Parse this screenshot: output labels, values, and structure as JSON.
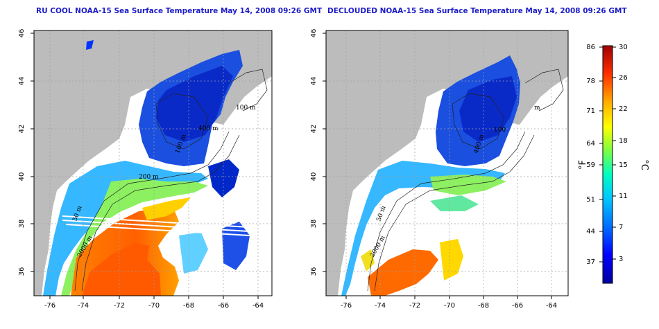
{
  "left_map": {
    "title": "RU COOL NOAA-15 Sea Surface Temperature May 14, 2008 09:26 GMT",
    "x_ticks": [
      "-76",
      "-74",
      "-72",
      "-70",
      "-68",
      "-66",
      "-64"
    ],
    "y_ticks": [
      "46",
      "44",
      "42",
      "40",
      "38",
      "36"
    ],
    "contour_labels": [
      "200 m",
      "2000 m",
      "400 m",
      "100 m",
      "100 m",
      "50 m"
    ]
  },
  "right_map": {
    "title": "DECLOUDED NOAA-15 Sea Surface Temperature May 14, 2008 09:26 GMT",
    "x_ticks": [
      "-76",
      "-74",
      "-72",
      "-70",
      "-68",
      "-66",
      "-64"
    ],
    "y_ticks": [
      "46",
      "44",
      "42",
      "40",
      "38",
      "36"
    ],
    "contour_labels": [
      "2000 m",
      "50 m",
      "400 m",
      "m",
      "100"
    ]
  },
  "colorbar": {
    "fahrenheit_label": "°F",
    "celsius_label": "°C",
    "fahrenheit_ticks": [
      "86",
      "78",
      "71",
      "64",
      "59",
      "51",
      "44",
      "37"
    ],
    "celsius_ticks": [
      "30",
      "26",
      "22",
      "18",
      "15",
      "11",
      "7",
      "3"
    ],
    "colors": [
      "#0000a0",
      "#0000ff",
      "#0080ff",
      "#00c0ff",
      "#00ffc0",
      "#80ff40",
      "#ffff00",
      "#ffc000",
      "#ff6000",
      "#ff0000",
      "#a00000"
    ]
  },
  "colors": {
    "land": "#bcbcbc",
    "title": "#1c1cc8",
    "grid": "#a0a0a0"
  }
}
